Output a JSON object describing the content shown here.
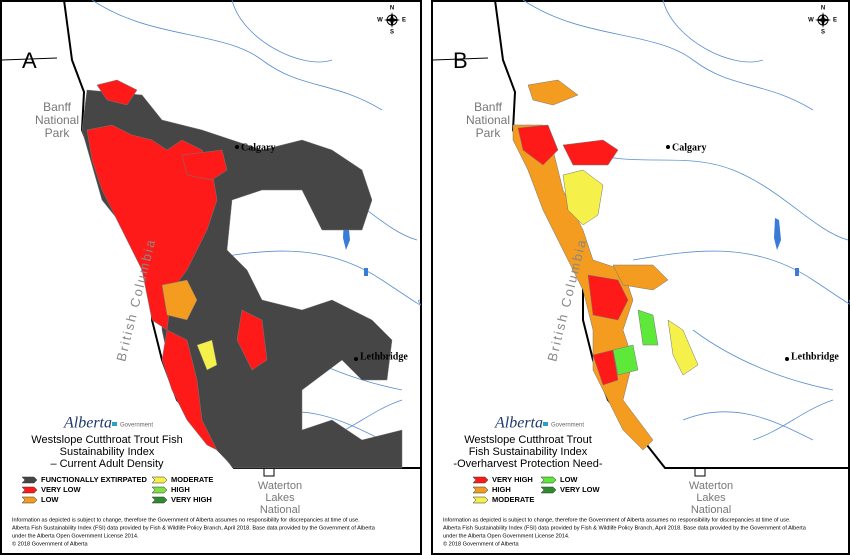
{
  "compass": [
    "N",
    "E",
    "S",
    "W"
  ],
  "panels": [
    {
      "label": "A",
      "park": [
        "Banff",
        "National",
        "Park"
      ],
      "city1": "Calgary",
      "city2": "Lethbridge",
      "province": "British Columbia",
      "waterton": [
        "Waterton",
        "Lakes",
        "National"
      ],
      "logo": "Alberta",
      "logo_sub": "Government",
      "title": [
        "Westslope Cutthroat Trout Fish",
        "Sustainability Index",
        "– Current Adult Density"
      ],
      "legend": [
        {
          "label": "FUNCTIONALLY EXTIRPATED",
          "color": "#464646"
        },
        {
          "label": "VERY LOW",
          "color": "#ff1a1a"
        },
        {
          "label": "LOW",
          "color": "#f39c1f"
        },
        {
          "label": "MODERATE",
          "color": "#f5f04a"
        },
        {
          "label": "HIGH",
          "color": "#7de043"
        },
        {
          "label": "VERY HIGH",
          "color": "#2e8b2e"
        }
      ],
      "footer": [
        "Information as depicted is subject to change, therefore the Government of Alberta assumes no responsibility for discrepancies at time of use.",
        "Alberta Fish Sustainability Index (FSI) data provided by Fish & Wildlife Policy Branch, April 2018. Base data provided by the Government of Alberta",
        "under the Alberta Open Government License 2014.",
        "© 2018 Government of Alberta"
      ]
    },
    {
      "label": "B",
      "park": [
        "Banff",
        "National",
        "Park"
      ],
      "city1": "Calgary",
      "city2": "Lethbridge",
      "province": "British Columbia",
      "waterton": [
        "Waterton",
        "Lakes",
        "National"
      ],
      "logo": "Alberta",
      "logo_sub": "Government",
      "title": [
        "Westslope Cutthroat Trout",
        "Fish Sustainability Index",
        "-Overharvest Protection Need-"
      ],
      "legend": [
        {
          "label": "VERY HIGH",
          "color": "#ff1a1a"
        },
        {
          "label": "HIGH",
          "color": "#f39c1f"
        },
        {
          "label": "MODERATE",
          "color": "#f5f04a"
        },
        {
          "label": "LOW",
          "color": "#5ee83a"
        },
        {
          "label": "VERY LOW",
          "color": "#2e8b2e"
        }
      ],
      "footer": [
        "Information as depicted is subject to change, therefore the Government of Alberta assumes no responsibility for discrepancies at time of use.",
        "Alberta Fish Sustainability Index (FSI) data provided by Fish & Wildlife Policy Branch, April 2018. Base data provided by the Government of Alberta",
        "under the Alberta Open Government License 2014.",
        "© 2018 Government of Alberta"
      ]
    }
  ]
}
